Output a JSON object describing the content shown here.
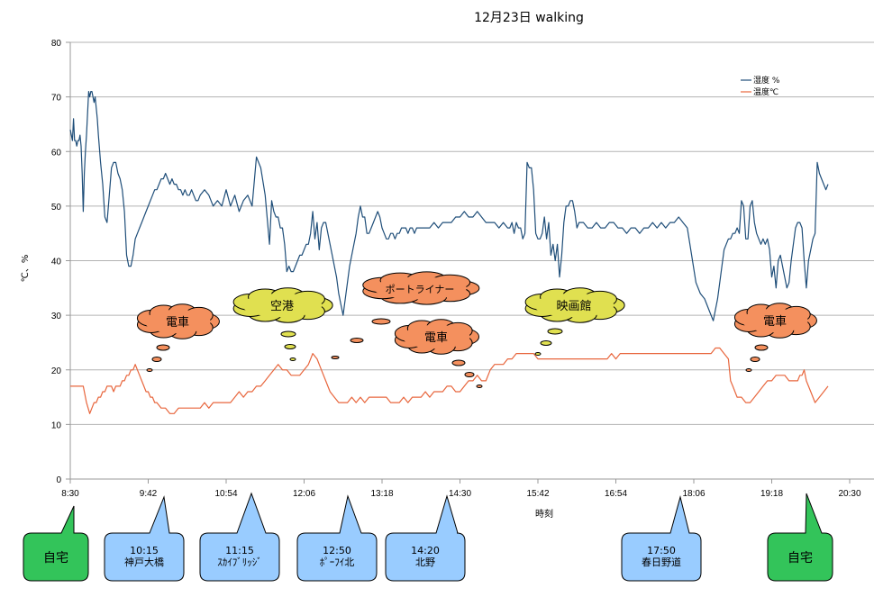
{
  "chart_data": {
    "type": "line",
    "title": "12月23日 walking",
    "xlabel": "時刻",
    "ylabel": "℃、%",
    "ylim": [
      0,
      80
    ],
    "yticks": [
      0,
      10,
      20,
      30,
      40,
      50,
      60,
      70,
      80
    ],
    "xlim_minutes_from_830": [
      0,
      720
    ],
    "xtick_labels": [
      "8:30",
      "9:42",
      "10:54",
      "12:06",
      "13:18",
      "14:30",
      "15:42",
      "16:54",
      "18:06",
      "19:18",
      "20:30"
    ],
    "grid": true,
    "legend_position": "top-right",
    "series": [
      {
        "name": "湿度 %",
        "color": "#1f4e79",
        "x_minutes": [
          0,
          2,
          3,
          4,
          5,
          6,
          7,
          8,
          9,
          10,
          11,
          12,
          13,
          14,
          15,
          16,
          17,
          18,
          19,
          20,
          21,
          22,
          23,
          24,
          25,
          26,
          28,
          30,
          32,
          34,
          36,
          38,
          40,
          42,
          44,
          46,
          48,
          50,
          52,
          54,
          56,
          58,
          60,
          62,
          64,
          66,
          68,
          70,
          72,
          74,
          76,
          78,
          80,
          82,
          84,
          86,
          88,
          90,
          92,
          94,
          96,
          98,
          100,
          102,
          104,
          106,
          108,
          110,
          112,
          114,
          116,
          118,
          120,
          124,
          128,
          132,
          136,
          140,
          144,
          148,
          152,
          156,
          160,
          164,
          168,
          172,
          176,
          180,
          184,
          186,
          188,
          190,
          192,
          194,
          196,
          198,
          200,
          202,
          204,
          206,
          208,
          210,
          212,
          214,
          216,
          218,
          220,
          222,
          224,
          226,
          228,
          230,
          232,
          234,
          236,
          238,
          240,
          242,
          244,
          246,
          248,
          250,
          252,
          254,
          256,
          258,
          260,
          262,
          264,
          266,
          268,
          270,
          272,
          274,
          276,
          278,
          280,
          282,
          284,
          286,
          288,
          290,
          292,
          294,
          296,
          298,
          300,
          302,
          304,
          306,
          308,
          310,
          312,
          314,
          316,
          318,
          320,
          324,
          328,
          332,
          336,
          340,
          344,
          348,
          352,
          356,
          360,
          364,
          368,
          372,
          376,
          380,
          384,
          388,
          392,
          396,
          400,
          404,
          406,
          408,
          410,
          412,
          414,
          416,
          418,
          420,
          422,
          424,
          426,
          428,
          430,
          432,
          434,
          436,
          438,
          440,
          442,
          444,
          446,
          448,
          450,
          452,
          454,
          456,
          458,
          460,
          462,
          464,
          466,
          468,
          470,
          472,
          474,
          478,
          482,
          486,
          490,
          494,
          498,
          502,
          506,
          510,
          514,
          518,
          522,
          526,
          530,
          534,
          538,
          542,
          546,
          550,
          554,
          558,
          562,
          566,
          570,
          574,
          578,
          582,
          586,
          590,
          594,
          598,
          600,
          602,
          604,
          606,
          608,
          610,
          612,
          614,
          616,
          618,
          620,
          622,
          624,
          626,
          628,
          630,
          632,
          634,
          636,
          638,
          640,
          642,
          644,
          646,
          648,
          650,
          652,
          654,
          656,
          658,
          660,
          662,
          664,
          666,
          668,
          670,
          672,
          674,
          676,
          678,
          680,
          682,
          684,
          686,
          688,
          690,
          692,
          694,
          696,
          698,
          700
        ],
        "values": [
          64,
          62,
          66,
          62,
          62,
          61,
          62,
          62,
          63,
          61,
          56,
          49,
          56,
          60,
          63,
          67,
          71,
          70,
          71,
          71,
          70,
          69,
          70,
          68,
          66,
          63,
          58,
          54,
          48,
          47,
          52,
          57,
          58,
          58,
          56,
          55,
          53,
          49,
          41,
          39,
          39,
          41,
          44,
          45,
          46,
          47,
          48,
          49,
          50,
          51,
          52,
          53,
          53,
          54,
          55,
          55,
          56,
          55,
          54,
          55,
          54,
          54,
          53,
          53,
          52,
          53,
          52,
          52,
          53,
          52,
          51,
          51,
          52,
          53,
          52,
          50,
          51,
          50,
          53,
          50,
          52,
          49,
          51,
          52,
          50,
          59,
          57,
          52,
          43,
          51,
          49,
          48,
          48,
          46,
          46,
          43,
          38,
          39,
          38,
          38,
          39,
          40,
          41,
          41,
          42,
          43,
          43,
          45,
          49,
          44,
          47,
          42,
          46,
          47,
          47,
          45,
          43,
          41,
          39,
          37,
          34,
          32,
          30,
          33,
          36,
          39,
          41,
          43,
          45,
          48,
          50,
          48,
          48,
          45,
          45,
          46,
          47,
          48,
          49,
          48,
          46,
          45,
          44,
          44,
          45,
          45,
          44,
          45,
          45,
          46,
          46,
          46,
          45,
          46,
          46,
          45,
          46,
          46,
          46,
          46,
          47,
          46,
          47,
          47,
          47,
          48,
          48,
          49,
          48,
          48,
          49,
          48,
          47,
          47,
          47,
          46,
          47,
          46,
          46,
          47,
          45,
          47,
          46,
          46,
          44,
          45,
          58,
          57,
          57,
          53,
          45,
          44,
          44,
          45,
          48,
          44,
          47,
          41,
          43,
          40,
          43,
          37,
          41,
          47,
          50,
          50,
          51,
          51,
          49,
          46,
          47,
          47,
          47,
          46,
          46,
          47,
          46,
          46,
          47,
          47,
          46,
          46,
          45,
          46,
          46,
          45,
          46,
          46,
          47,
          46,
          47,
          46,
          47,
          47,
          48,
          47,
          46,
          41,
          36,
          34,
          33,
          31,
          29,
          33,
          36,
          39,
          42,
          43,
          44,
          44,
          45,
          45,
          46,
          45,
          51,
          50,
          44,
          44,
          50,
          51,
          47,
          45,
          44,
          43,
          44,
          43,
          44,
          42,
          37,
          39,
          35,
          40,
          41,
          39,
          37,
          35,
          36,
          40,
          43,
          46,
          47,
          47,
          46,
          40,
          35,
          40,
          42,
          44,
          45,
          58,
          56,
          55,
          54,
          53,
          54,
          55,
          54,
          54,
          55,
          54,
          54,
          55
        ]
      },
      {
        "name": "温度℃",
        "color": "#e8663d",
        "x_minutes": [
          0,
          6,
          12,
          15,
          18,
          20,
          22,
          24,
          26,
          28,
          30,
          32,
          34,
          36,
          38,
          40,
          42,
          44,
          46,
          48,
          50,
          52,
          54,
          56,
          58,
          60,
          62,
          64,
          66,
          68,
          70,
          72,
          74,
          76,
          78,
          80,
          84,
          88,
          92,
          96,
          100,
          104,
          108,
          112,
          116,
          120,
          124,
          128,
          132,
          136,
          140,
          144,
          148,
          152,
          156,
          160,
          164,
          168,
          172,
          176,
          180,
          184,
          188,
          192,
          196,
          200,
          204,
          208,
          212,
          216,
          220,
          224,
          228,
          232,
          236,
          240,
          244,
          248,
          252,
          256,
          260,
          264,
          268,
          272,
          276,
          280,
          284,
          288,
          292,
          296,
          300,
          304,
          308,
          312,
          316,
          320,
          324,
          328,
          332,
          336,
          340,
          344,
          348,
          352,
          356,
          360,
          364,
          368,
          372,
          376,
          380,
          384,
          388,
          392,
          396,
          400,
          404,
          408,
          412,
          416,
          420,
          424,
          428,
          432,
          436,
          440,
          444,
          448,
          452,
          456,
          460,
          464,
          468,
          472,
          476,
          480,
          484,
          488,
          492,
          496,
          500,
          504,
          508,
          512,
          516,
          520,
          524,
          528,
          532,
          536,
          540,
          544,
          548,
          552,
          556,
          560,
          564,
          568,
          572,
          576,
          580,
          584,
          588,
          592,
          596,
          600,
          604,
          608,
          610,
          612,
          614,
          616,
          618,
          620,
          624,
          628,
          632,
          636,
          640,
          644,
          648,
          652,
          656,
          660,
          664,
          668,
          670,
          672,
          674,
          676,
          678,
          680,
          684,
          688,
          692,
          696,
          700
        ],
        "values": [
          17,
          17,
          17,
          14,
          12,
          13,
          14,
          14,
          15,
          15,
          16,
          16,
          17,
          17,
          17,
          16,
          17,
          17,
          17,
          18,
          18,
          19,
          19,
          20,
          20,
          21,
          20,
          19,
          18,
          17,
          16,
          16,
          15,
          15,
          14,
          14,
          13,
          13,
          12,
          12,
          13,
          13,
          13,
          13,
          13,
          13,
          14,
          13,
          14,
          14,
          14,
          14,
          14,
          15,
          16,
          15,
          16,
          16,
          17,
          17,
          18,
          19,
          20,
          21,
          20,
          20,
          19,
          19,
          19,
          20,
          21,
          23,
          22,
          20,
          18,
          16,
          15,
          14,
          14,
          14,
          15,
          14,
          15,
          14,
          15,
          15,
          15,
          15,
          15,
          14,
          14,
          14,
          15,
          14,
          15,
          15,
          15,
          16,
          15,
          16,
          16,
          16,
          17,
          17,
          16,
          16,
          17,
          18,
          18,
          19,
          18,
          18,
          20,
          21,
          21,
          21,
          22,
          22,
          23,
          23,
          23,
          23,
          23,
          22,
          22,
          22,
          22,
          22,
          22,
          22,
          22,
          22,
          22,
          22,
          22,
          22,
          22,
          22,
          22,
          22,
          23,
          22,
          23,
          23,
          23,
          23,
          23,
          23,
          23,
          23,
          23,
          23,
          23,
          23,
          23,
          23,
          23,
          23,
          23,
          23,
          23,
          23,
          23,
          23,
          24,
          24,
          23,
          22,
          18,
          17,
          16,
          15,
          15,
          15,
          14,
          14,
          15,
          16,
          17,
          18,
          18,
          19,
          19,
          19,
          18,
          18,
          18,
          18,
          19,
          19,
          20,
          18,
          16,
          14,
          15,
          16,
          17,
          17,
          18,
          18,
          18
        ]
      }
    ],
    "thought_clouds": [
      {
        "label": "電車",
        "color": "#f4905e",
        "text_size": "normal"
      },
      {
        "label": "空港",
        "color": "#e0e050",
        "text_size": "normal"
      },
      {
        "label": "ポートライナー",
        "color": "#f4905e",
        "text_size": "small"
      },
      {
        "label": "電車",
        "color": "#f4905e",
        "text_size": "normal"
      },
      {
        "label": "映画館",
        "color": "#e0e050",
        "text_size": "normal"
      },
      {
        "label": "電車",
        "color": "#f4905e",
        "text_size": "normal"
      }
    ],
    "callouts": [
      {
        "time": "",
        "place": "自宅",
        "color": "#33c45a",
        "kind": "home"
      },
      {
        "time": "10:15",
        "place": "神戸大橋",
        "color": "#99ccff",
        "kind": "stop"
      },
      {
        "time": "11:15",
        "place": "ｽｶｲﾌﾞﾘｯｼﾞ",
        "color": "#99ccff",
        "kind": "stop"
      },
      {
        "time": "12:50",
        "place": "ﾎﾟｰﾌｲ北",
        "color": "#99ccff",
        "kind": "stop"
      },
      {
        "time": "14:20",
        "place": "北野",
        "color": "#99ccff",
        "kind": "stop"
      },
      {
        "time": "17:50",
        "place": "春日野道",
        "color": "#99ccff",
        "kind": "stop"
      },
      {
        "time": "",
        "place": "自宅",
        "color": "#33c45a",
        "kind": "home"
      }
    ]
  }
}
